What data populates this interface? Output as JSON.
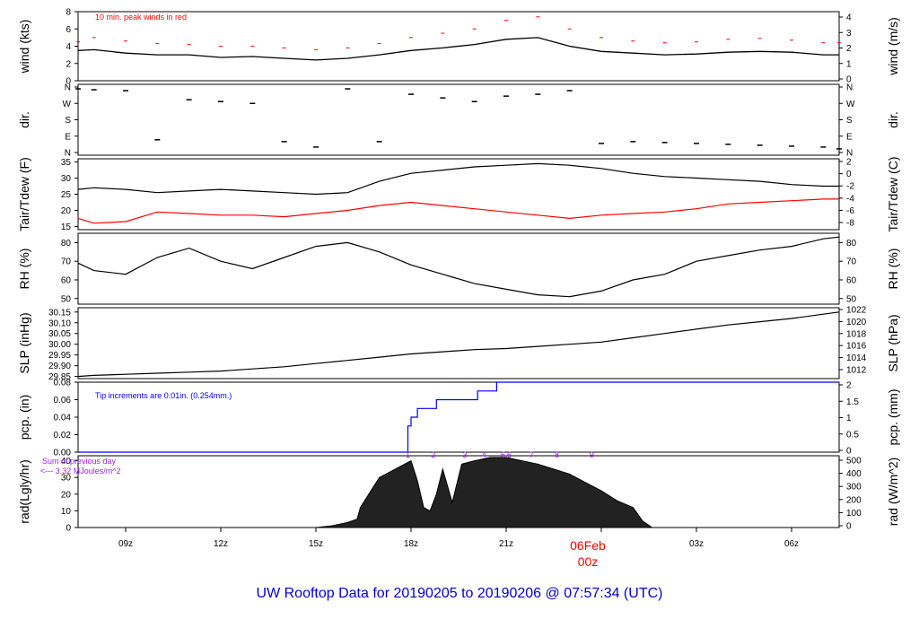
{
  "title": "UW Rooftop Data for 20190205  to  20190206 @ 07:57:34  (UTC)",
  "colors": {
    "title": "#0000cc",
    "peak": "#ff0000",
    "dew": "#ff0000",
    "pcp": "#0000ff",
    "sum": "#a020f0",
    "date": "#ff0000"
  },
  "x_axis": {
    "tick_labels": [
      "09z",
      "12z",
      "15z",
      "18z",
      "21z",
      "03z",
      "06z"
    ],
    "day_label": "06Feb",
    "day_sub": "00z"
  },
  "annotations": {
    "wind": "10 min. peak winds in red",
    "pcp": "Tip increments are 0.01in. (0.254mm.)",
    "rad_sum_line1": "Sum of previous day",
    "rad_sum_line2": "<--- 3.32 MJoules/m^2",
    "rad_markers": [
      "1",
      "2",
      "3",
      "4",
      "5",
      "6",
      "7",
      "8",
      "9"
    ]
  },
  "chart_data": [
    {
      "type": "line",
      "name": "wind",
      "ylabel_left": "wind (kts)",
      "ylabel_right": "wind (m/s)",
      "ylim": [
        0,
        8
      ],
      "yticks_left": [
        "0",
        "2",
        "4",
        "6",
        "8"
      ],
      "yticks_right": [
        "0",
        "1",
        "2",
        "3",
        "4"
      ],
      "x_hours": [
        7.5,
        8,
        9,
        10,
        11,
        12,
        13,
        14,
        15,
        16,
        17,
        18,
        19,
        20,
        21,
        22,
        23,
        24,
        25,
        26,
        27,
        28,
        29,
        30,
        31,
        31.5
      ],
      "values": [
        3.5,
        3.6,
        3.2,
        3.0,
        3.0,
        2.7,
        2.8,
        2.6,
        2.4,
        2.6,
        3.0,
        3.5,
        3.8,
        4.2,
        4.8,
        5.0,
        4.0,
        3.4,
        3.2,
        3.0,
        3.1,
        3.3,
        3.4,
        3.3,
        3.0,
        3.0
      ],
      "peak_values": [
        4.5,
        5.0,
        4.6,
        4.3,
        4.2,
        4.0,
        4.0,
        3.8,
        3.6,
        3.8,
        4.3,
        5.0,
        5.5,
        6.0,
        7.0,
        7.4,
        6.0,
        5.0,
        4.6,
        4.4,
        4.5,
        4.8,
        4.9,
        4.7,
        4.4,
        4.4
      ]
    },
    {
      "type": "scatter",
      "name": "dir.",
      "ylabel_left": "dir.",
      "ylabel_right": "dir.",
      "yticks_left": [
        "N",
        "E",
        "S",
        "W",
        "N"
      ],
      "yticks_right": [
        "N",
        "E",
        "S",
        "W",
        "N"
      ],
      "ylim": [
        0,
        360
      ],
      "x_hours": [
        7.5,
        8,
        9,
        10,
        11,
        12,
        13,
        14,
        15,
        16,
        17,
        18,
        19,
        20,
        21,
        22,
        23,
        24,
        25,
        26,
        27,
        28,
        29,
        30,
        31,
        31.5
      ],
      "values": [
        350,
        345,
        340,
        70,
        290,
        280,
        270,
        60,
        30,
        350,
        60,
        320,
        300,
        280,
        310,
        320,
        340,
        50,
        60,
        55,
        50,
        45,
        40,
        35,
        30,
        20
      ]
    },
    {
      "type": "line",
      "name": "temperature",
      "ylabel_left": "Tair/Tdew (F)",
      "ylabel_right": "Tair/Tdew (C)",
      "ylim": [
        14,
        36
      ],
      "yticks_left": [
        "15",
        "20",
        "25",
        "30",
        "35"
      ],
      "yticks_right": [
        "-8",
        "-6",
        "-4",
        "-2",
        "0",
        "2"
      ],
      "x_hours": [
        7.5,
        8,
        9,
        10,
        11,
        12,
        13,
        14,
        15,
        16,
        17,
        18,
        19,
        20,
        21,
        22,
        23,
        24,
        25,
        26,
        27,
        28,
        29,
        30,
        31,
        31.5
      ],
      "series": [
        {
          "name": "Tair",
          "values": [
            26.5,
            27.0,
            26.5,
            25.5,
            26.0,
            26.5,
            26.0,
            25.5,
            25.0,
            25.5,
            29.0,
            31.5,
            32.5,
            33.5,
            34.0,
            34.5,
            34.0,
            33.0,
            31.5,
            30.5,
            30.0,
            29.5,
            29.0,
            28.0,
            27.5,
            27.5
          ]
        },
        {
          "name": "Tdew",
          "values": [
            17.5,
            16.0,
            16.5,
            19.5,
            19.0,
            18.5,
            18.5,
            18.0,
            19.0,
            20.0,
            21.5,
            22.5,
            21.5,
            20.5,
            19.5,
            18.5,
            17.5,
            18.5,
            19.0,
            19.5,
            20.5,
            22.0,
            22.5,
            23.0,
            23.5,
            23.5
          ]
        }
      ]
    },
    {
      "type": "line",
      "name": "RH",
      "ylabel_left": "RH (%)",
      "ylabel_right": "RH (%)",
      "ylim": [
        47,
        85
      ],
      "yticks_left": [
        "50",
        "60",
        "70",
        "80"
      ],
      "yticks_right": [
        "50",
        "60",
        "70",
        "80"
      ],
      "x_hours": [
        7.5,
        8,
        9,
        10,
        11,
        12,
        13,
        14,
        15,
        16,
        17,
        18,
        19,
        20,
        21,
        22,
        23,
        24,
        25,
        26,
        27,
        28,
        29,
        30,
        31,
        31.5
      ],
      "values": [
        69,
        65,
        63,
        72,
        77,
        70,
        66,
        72,
        78,
        80,
        75,
        68,
        63,
        58,
        55,
        52,
        51,
        54,
        60,
        63,
        70,
        73,
        76,
        78,
        82,
        83
      ]
    },
    {
      "type": "line",
      "name": "SLP",
      "ylabel_left": "SLP (inHg)",
      "ylabel_right": "SLP (hPa)",
      "ylim": [
        29.84,
        30.17
      ],
      "yticks_left": [
        "29.85",
        "29.90",
        "29.95",
        "30.00",
        "30.05",
        "30.10",
        "30.15"
      ],
      "yticks_right": [
        "1012",
        "1014",
        "1016",
        "1018",
        "1020",
        "1022"
      ],
      "x_hours": [
        7.5,
        8,
        9,
        10,
        11,
        12,
        13,
        14,
        15,
        16,
        17,
        18,
        19,
        20,
        21,
        22,
        23,
        24,
        25,
        26,
        27,
        28,
        29,
        30,
        31,
        31.5
      ],
      "values": [
        29.85,
        29.855,
        29.86,
        29.865,
        29.87,
        29.875,
        29.885,
        29.895,
        29.91,
        29.925,
        29.94,
        29.955,
        29.965,
        29.975,
        29.98,
        29.99,
        30.0,
        30.01,
        30.03,
        30.05,
        30.07,
        30.09,
        30.105,
        30.12,
        30.14,
        30.15
      ]
    },
    {
      "type": "line",
      "name": "pcp",
      "ylabel_left": "pcp. (in)",
      "ylabel_right": "pcp. (mm)",
      "ylim": [
        0,
        0.08
      ],
      "yticks_left": [
        "0.00",
        "0.02",
        "0.04",
        "0.06",
        "0.08"
      ],
      "yticks_right": [
        "0",
        "0.5",
        "1",
        "1.5",
        "2"
      ],
      "x_hours": [
        7.5,
        17.9,
        17.9,
        18.0,
        18.0,
        18.2,
        18.2,
        18.8,
        18.8,
        20.1,
        20.1,
        20.7,
        20.7,
        31.5
      ],
      "values": [
        0.0,
        0.0,
        0.03,
        0.03,
        0.04,
        0.04,
        0.05,
        0.05,
        0.06,
        0.06,
        0.07,
        0.07,
        0.08,
        0.08
      ]
    },
    {
      "type": "area",
      "name": "rad",
      "ylabel_left": "rad(Lgly/hr)",
      "ylabel_right": "rad (W/m^2)",
      "ylim": [
        0,
        43
      ],
      "yticks_left": [
        "0",
        "10",
        "20",
        "30",
        "40"
      ],
      "yticks_right": [
        "0",
        "100",
        "200",
        "300",
        "400",
        "500"
      ],
      "x_hours": [
        15.0,
        15.5,
        16.0,
        16.3,
        16.4,
        17.0,
        17.5,
        18.0,
        18.2,
        18.4,
        18.6,
        18.8,
        19.0,
        19.3,
        19.6,
        20.0,
        20.5,
        21.0,
        21.5,
        22.0,
        22.5,
        23.0,
        23.5,
        24.0,
        24.5,
        25.0,
        25.3,
        25.6
      ],
      "values": [
        0,
        1,
        3,
        5,
        12,
        30,
        35,
        40,
        28,
        12,
        10,
        20,
        35,
        15,
        38,
        40,
        42,
        42,
        40,
        38,
        35,
        32,
        27,
        22,
        16,
        12,
        4,
        0
      ]
    }
  ]
}
